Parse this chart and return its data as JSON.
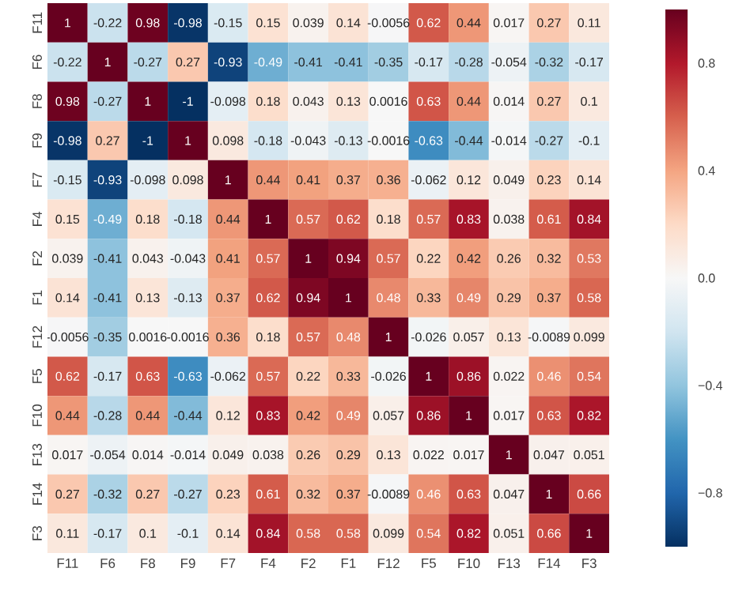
{
  "chart_data": {
    "type": "heatmap",
    "categories": [
      "F11",
      "F6",
      "F8",
      "F9",
      "F7",
      "F4",
      "F2",
      "F1",
      "F12",
      "F5",
      "F10",
      "F13",
      "F14",
      "F3"
    ],
    "y_categories": [
      "F11",
      "F6",
      "F8",
      "F9",
      "F7",
      "F4",
      "F2",
      "F1",
      "F12",
      "F5",
      "F10",
      "F13",
      "F14",
      "F3"
    ],
    "cells": [
      [
        1,
        -0.22,
        0.98,
        -0.98,
        -0.15,
        0.15,
        0.039,
        0.14,
        -0.0056,
        0.62,
        0.44,
        0.017,
        0.27,
        0.11
      ],
      [
        -0.22,
        1,
        -0.27,
        0.27,
        -0.93,
        -0.49,
        -0.41,
        -0.41,
        -0.35,
        -0.17,
        -0.28,
        -0.054,
        -0.32,
        -0.17
      ],
      [
        0.98,
        -0.27,
        1,
        -1,
        -0.098,
        0.18,
        0.043,
        0.13,
        0.0016,
        0.63,
        0.44,
        0.014,
        0.27,
        0.1
      ],
      [
        -0.98,
        0.27,
        -1,
        1,
        0.098,
        -0.18,
        -0.043,
        -0.13,
        -0.0016,
        -0.63,
        -0.44,
        -0.014,
        -0.27,
        -0.1
      ],
      [
        -0.15,
        -0.93,
        -0.098,
        0.098,
        1,
        0.44,
        0.41,
        0.37,
        0.36,
        -0.062,
        0.12,
        0.049,
        0.23,
        0.14
      ],
      [
        0.15,
        -0.49,
        0.18,
        -0.18,
        0.44,
        1,
        0.57,
        0.62,
        0.18,
        0.57,
        0.83,
        0.038,
        0.61,
        0.84
      ],
      [
        0.039,
        -0.41,
        0.043,
        -0.043,
        0.41,
        0.57,
        1,
        0.94,
        0.57,
        0.22,
        0.42,
        0.26,
        0.32,
        0.53
      ],
      [
        0.14,
        -0.41,
        0.13,
        -0.13,
        0.37,
        0.62,
        0.94,
        1,
        0.48,
        0.33,
        0.49,
        0.29,
        0.37,
        0.58
      ],
      [
        -0.0056,
        -0.35,
        0.0016,
        -0.0016,
        0.36,
        0.18,
        0.57,
        0.48,
        1,
        -0.026,
        0.057,
        0.13,
        -0.0089,
        0.099
      ],
      [
        0.62,
        -0.17,
        0.63,
        -0.63,
        -0.062,
        0.57,
        0.22,
        0.33,
        -0.026,
        1,
        0.86,
        0.022,
        0.46,
        0.54
      ],
      [
        0.44,
        -0.28,
        0.44,
        -0.44,
        0.12,
        0.83,
        0.42,
        0.49,
        0.057,
        0.86,
        1,
        0.017,
        0.63,
        0.82
      ],
      [
        0.017,
        -0.054,
        0.014,
        -0.014,
        0.049,
        0.038,
        0.26,
        0.29,
        0.13,
        0.022,
        0.017,
        1,
        0.047,
        0.051
      ],
      [
        0.27,
        -0.32,
        0.27,
        -0.27,
        0.23,
        0.61,
        0.32,
        0.37,
        -0.0089,
        0.46,
        0.63,
        0.047,
        1,
        0.66
      ],
      [
        0.11,
        -0.17,
        0.1,
        -0.1,
        0.14,
        0.84,
        0.58,
        0.58,
        0.099,
        0.54,
        0.82,
        0.051,
        0.66,
        1
      ]
    ],
    "data_labels": true,
    "clim": [
      -1,
      1
    ],
    "cticks": [
      {
        "value": -0.8,
        "label": "−0.8"
      },
      {
        "value": -0.4,
        "label": "−0.4"
      },
      {
        "value": 0,
        "label": "0.0"
      },
      0.4,
      0.8
    ]
  }
}
